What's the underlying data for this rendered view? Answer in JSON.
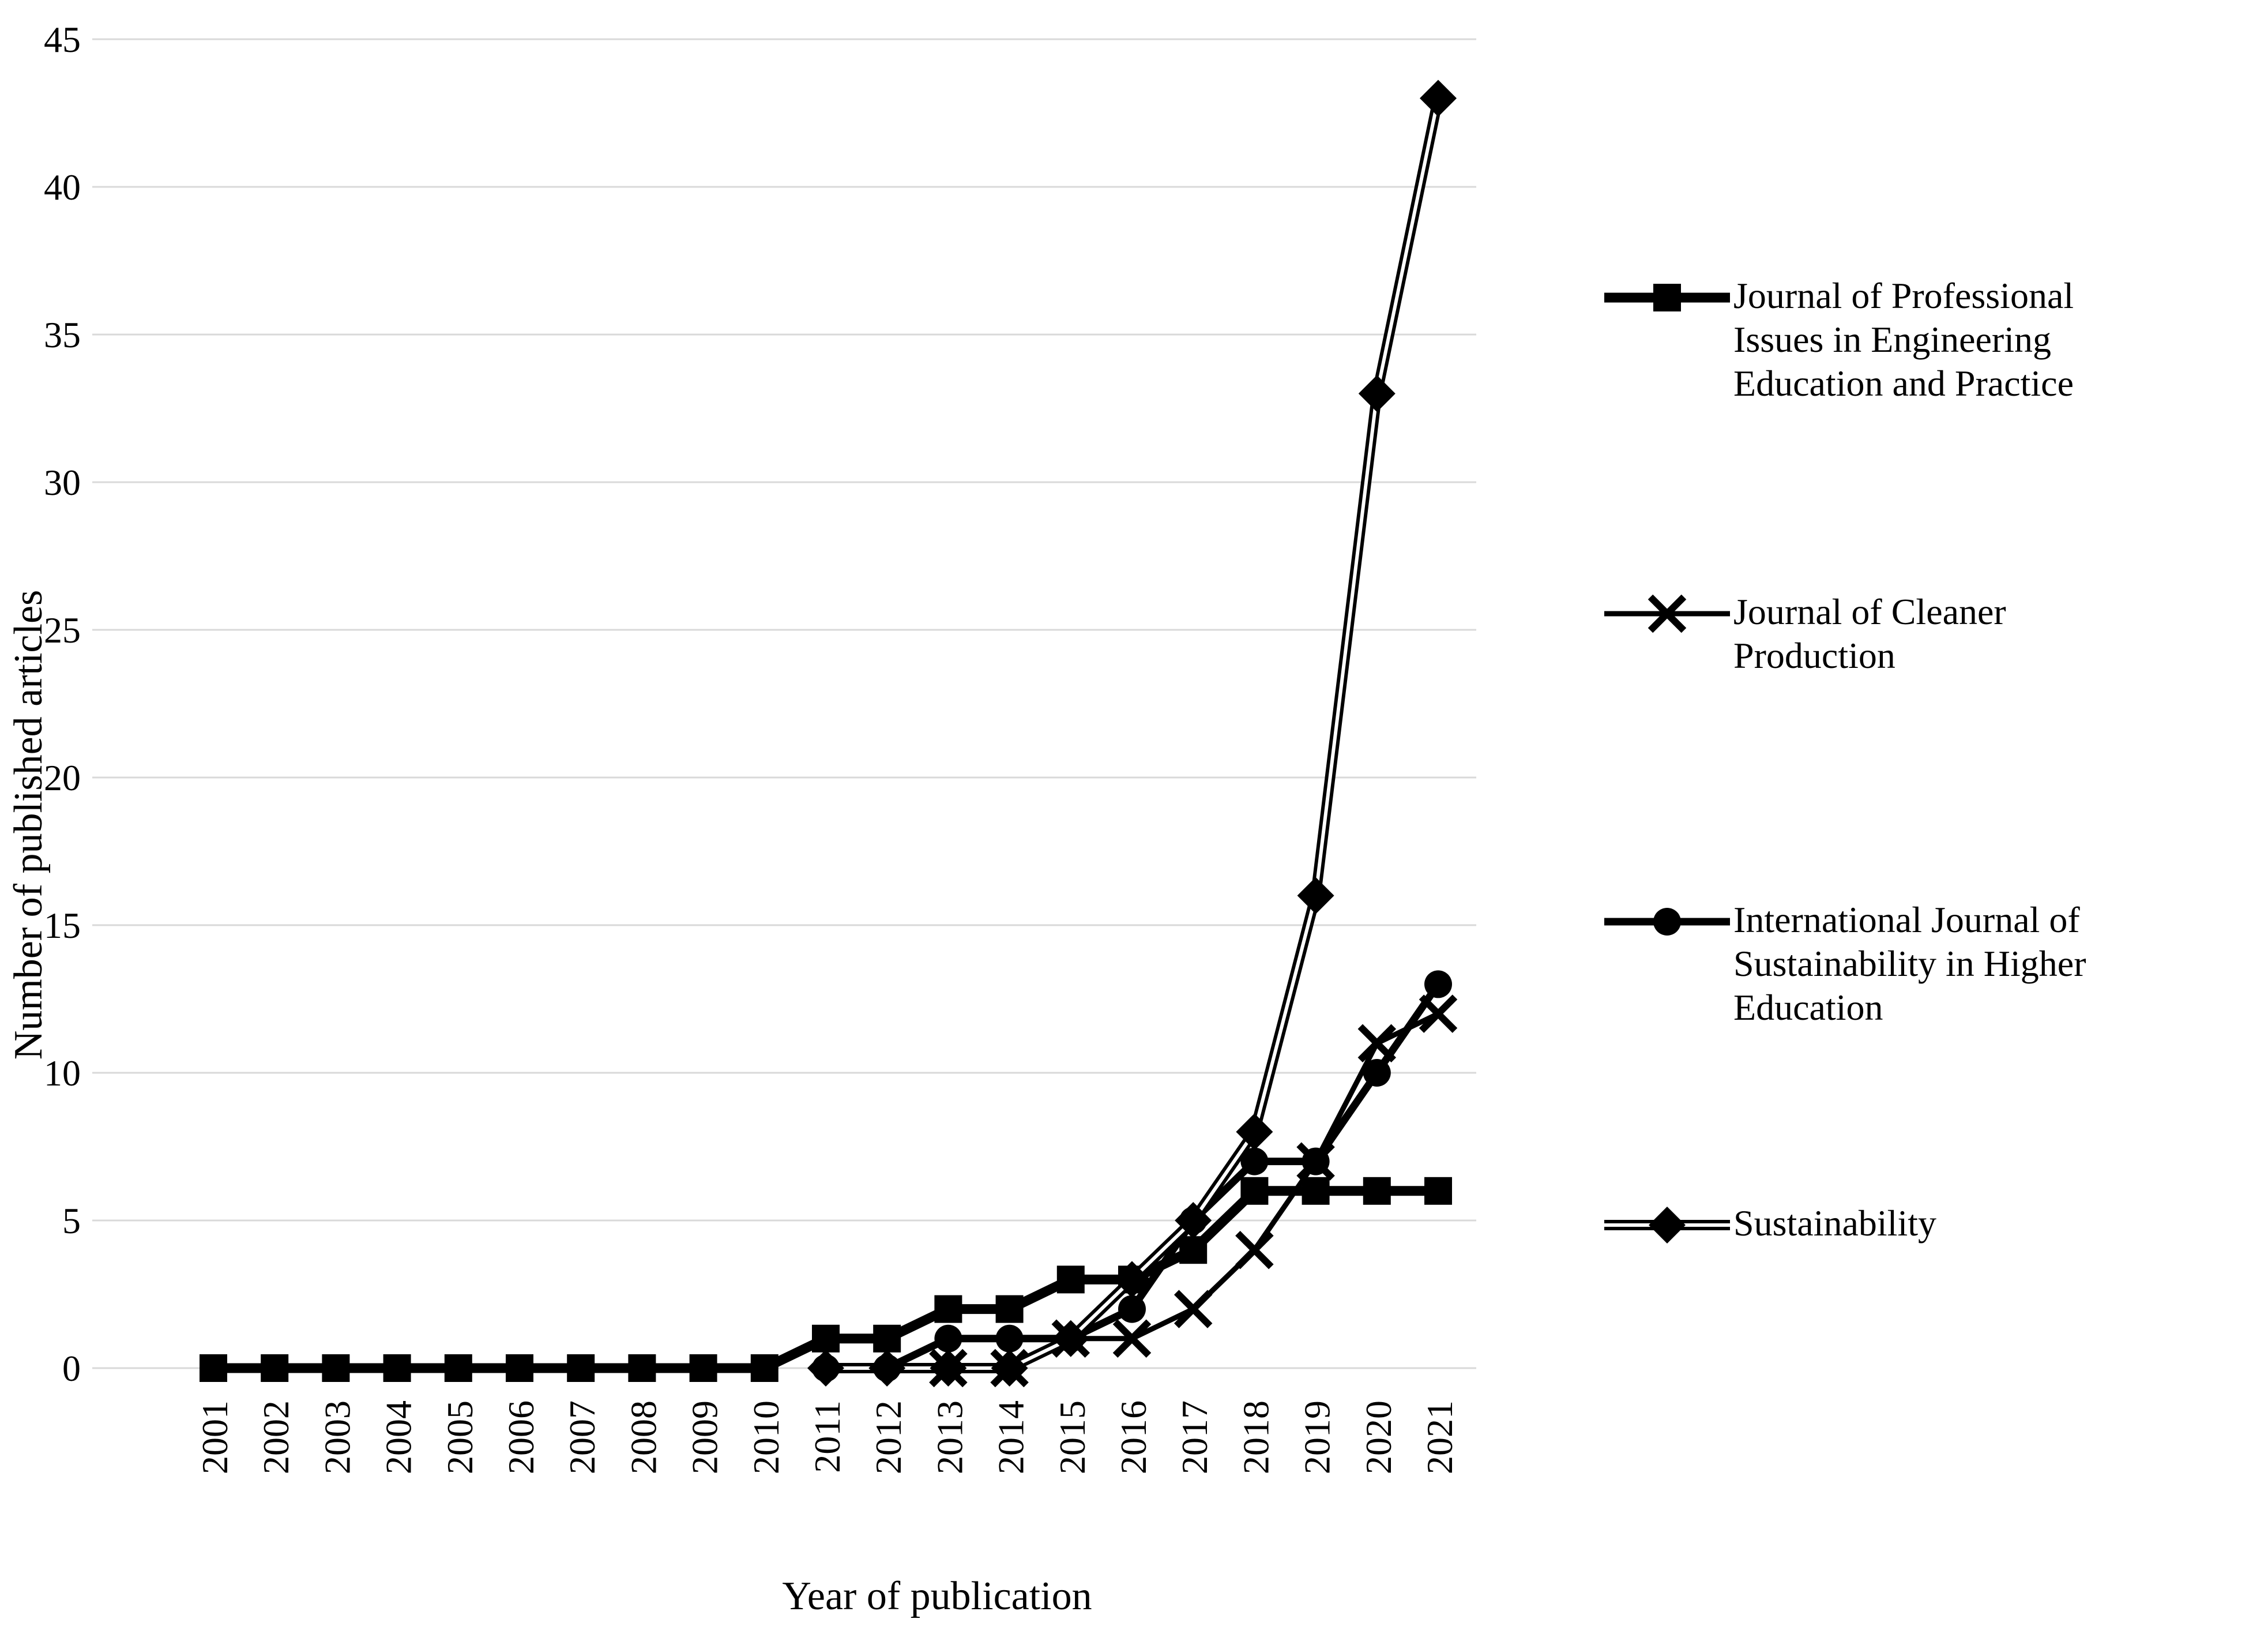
{
  "chart_data": {
    "type": "line",
    "title": "",
    "xlabel": "Year of publication",
    "ylabel": "Number of published articles",
    "ylim": [
      0,
      45
    ],
    "ytick_step": 5,
    "yticks": [
      0,
      5,
      10,
      15,
      20,
      25,
      30,
      35,
      40,
      45
    ],
    "grid": true,
    "legend_position": "right",
    "colors": {
      "series": "#000000",
      "gridline": "#d9d9d9",
      "background": "#ffffff",
      "text": "#000000"
    },
    "categories": [
      "2001",
      "2002",
      "2003",
      "2004",
      "2005",
      "2006",
      "2007",
      "2008",
      "2009",
      "2010",
      "2011",
      "2012",
      "2013",
      "2014",
      "2015",
      "2016",
      "2017",
      "2018",
      "2019",
      "2020",
      "2021"
    ],
    "series": [
      {
        "name": "Journal of Professional Issues in Engineering Education and Practice",
        "legend_lines": [
          "Journal of Professional",
          "Issues in Engineering",
          "Education and Practice"
        ],
        "marker": "square",
        "line_style": "thick-solid",
        "values": [
          0,
          0,
          0,
          0,
          0,
          0,
          0,
          0,
          0,
          0,
          1,
          1,
          2,
          2,
          3,
          3,
          4,
          6,
          6,
          6,
          6
        ]
      },
      {
        "name": "Journal of Cleaner Production",
        "legend_lines": [
          "Journal of Cleaner",
          "Production"
        ],
        "marker": "x",
        "line_style": "solid",
        "values": [
          null,
          null,
          null,
          null,
          null,
          null,
          null,
          null,
          null,
          null,
          null,
          null,
          0,
          0,
          1,
          1,
          2,
          4,
          7,
          11,
          12
        ]
      },
      {
        "name": "International Journal of Sustainability in Higher Education",
        "legend_lines": [
          "International Journal of",
          "Sustainability in Higher",
          "Education"
        ],
        "marker": "circle",
        "line_style": "solid",
        "values": [
          null,
          null,
          null,
          null,
          null,
          null,
          null,
          null,
          null,
          null,
          0,
          0,
          1,
          1,
          1,
          2,
          5,
          7,
          7,
          10,
          13
        ]
      },
      {
        "name": "Sustainability",
        "legend_lines": [
          "Sustainability"
        ],
        "marker": "diamond",
        "line_style": "double",
        "values": [
          null,
          null,
          null,
          null,
          null,
          null,
          null,
          null,
          null,
          null,
          0,
          0,
          0,
          0,
          1,
          3,
          5,
          8,
          16,
          33,
          43
        ]
      }
    ]
  }
}
